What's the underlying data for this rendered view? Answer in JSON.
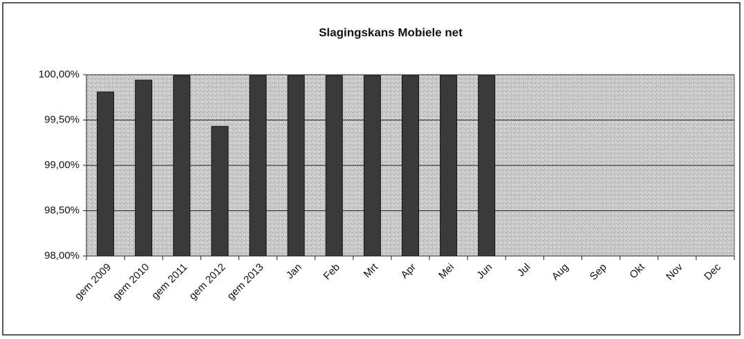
{
  "chart_data": {
    "type": "bar",
    "title": "Slagingskans Mobiele net",
    "categories": [
      "gem 2009",
      "gem 2010",
      "gem 2011",
      "gem 2012",
      "gem 2013",
      "Jan",
      "Feb",
      "Mrt",
      "Apr",
      "Mei",
      "Jun",
      "Jul",
      "Aug",
      "Sep",
      "Okt",
      "Nov",
      "Dec"
    ],
    "values": [
      99.81,
      99.94,
      99.99,
      99.43,
      99.99,
      99.99,
      99.99,
      99.99,
      99.99,
      99.99,
      99.99,
      null,
      null,
      null,
      null,
      null,
      null
    ],
    "color": "#3a3a3a",
    "ylim": [
      98,
      100
    ],
    "yticks": [
      {
        "value": 98,
        "label": "98,00%"
      },
      {
        "value": 98.5,
        "label": "98,50%"
      },
      {
        "value": 99,
        "label": "99,00%"
      },
      {
        "value": 99.5,
        "label": "99,50%"
      },
      {
        "value": 100,
        "label": "100,00%"
      }
    ],
    "grid": true
  }
}
